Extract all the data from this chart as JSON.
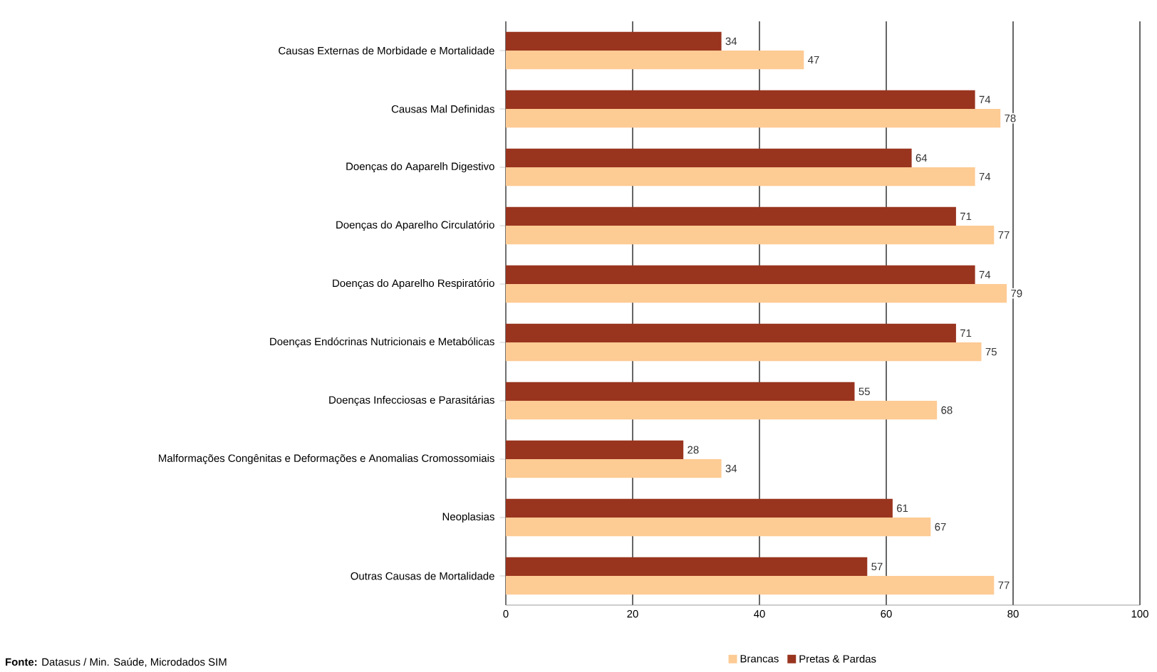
{
  "chart_data": {
    "type": "bar",
    "orientation": "horizontal",
    "categories": [
      "Causas Externas de Morbidade e Mortalidade",
      "Causas Mal Definidas",
      "Doenças do Aaparelh Digestivo",
      "Doenças do Aparelho Circulatório",
      "Doenças do Aparelho Respiratório",
      "Doenças Endócrinas Nutricionais e Metabólicas",
      "Doenças Infecciosas e Parasitárias",
      "Malformações Congênitas e Deformações e Anomalias Cromossomiais",
      "Neoplasias",
      "Outras Causas de Mortalidade"
    ],
    "series": [
      {
        "name": "Brancas",
        "color": "#fdcb94",
        "values": [
          47,
          78,
          74,
          77,
          79,
          75,
          68,
          34,
          67,
          77
        ]
      },
      {
        "name": "Pretas & Pardas",
        "color": "#99341f",
        "values": [
          34,
          74,
          64,
          71,
          74,
          71,
          55,
          28,
          61,
          57
        ]
      }
    ],
    "xlim": [
      0,
      100
    ],
    "xticks": [
      0,
      20,
      40,
      60,
      80,
      100
    ],
    "grid": "x",
    "data_labels": true,
    "legend": "bottom",
    "annotations": [
      "**Fonte:** Datasus / Min. Saúde, Microdados SIM"
    ]
  }
}
